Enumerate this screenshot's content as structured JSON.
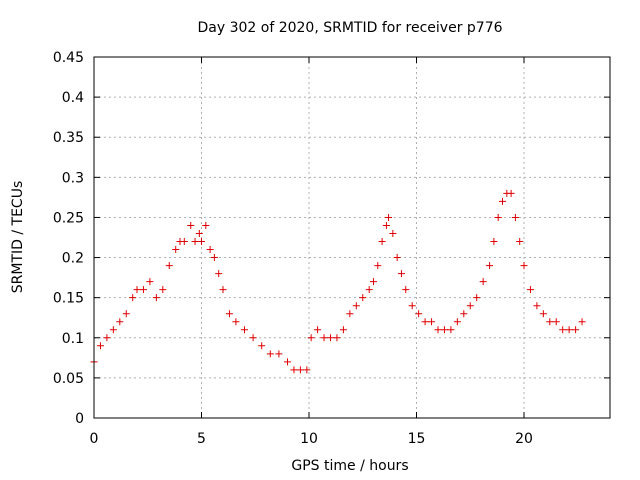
{
  "chart_data": {
    "type": "scatter",
    "title": "Day 302 of 2020, SRMTID for receiver p776",
    "xlabel": "GPS time / hours",
    "ylabel": "SRMTID / TECUs",
    "xlim": [
      0,
      24
    ],
    "ylim": [
      0,
      0.45
    ],
    "xticks": [
      0,
      5,
      10,
      15,
      20
    ],
    "xtick_labels": [
      "0",
      "5",
      "10",
      "15",
      "20"
    ],
    "yticks": [
      0,
      0.05,
      0.1,
      0.15,
      0.2,
      0.25,
      0.3,
      0.35,
      0.4,
      0.45
    ],
    "ytick_labels": [
      "0",
      "0.05",
      "0.1",
      "0.15",
      "0.2",
      "0.25",
      "0.3",
      "0.35",
      "0.4",
      "0.45"
    ],
    "grid": true,
    "marker": "+",
    "color": "#e00000",
    "series": [
      {
        "name": "SRMTID",
        "x": [
          0.0,
          0.3,
          0.6,
          0.9,
          1.2,
          1.5,
          1.8,
          2.0,
          2.3,
          2.6,
          2.9,
          3.2,
          3.5,
          3.8,
          4.0,
          4.2,
          4.5,
          4.7,
          4.9,
          5.0,
          5.2,
          5.4,
          5.6,
          5.8,
          6.0,
          6.3,
          6.6,
          7.0,
          7.4,
          7.8,
          8.2,
          8.6,
          9.0,
          9.3,
          9.6,
          9.9,
          10.1,
          10.4,
          10.7,
          11.0,
          11.3,
          11.6,
          11.9,
          12.2,
          12.5,
          12.8,
          13.0,
          13.2,
          13.4,
          13.6,
          13.7,
          13.9,
          14.1,
          14.3,
          14.5,
          14.8,
          15.1,
          15.4,
          15.7,
          16.0,
          16.3,
          16.6,
          16.9,
          17.2,
          17.5,
          17.8,
          18.1,
          18.4,
          18.6,
          18.8,
          19.0,
          19.2,
          19.4,
          19.6,
          19.8,
          20.0,
          20.3,
          20.6,
          20.9,
          21.2,
          21.5,
          21.8,
          22.1,
          22.4,
          22.7
        ],
        "y": [
          0.07,
          0.09,
          0.1,
          0.11,
          0.12,
          0.13,
          0.15,
          0.16,
          0.16,
          0.17,
          0.15,
          0.16,
          0.19,
          0.21,
          0.22,
          0.22,
          0.24,
          0.22,
          0.23,
          0.22,
          0.24,
          0.21,
          0.2,
          0.18,
          0.16,
          0.13,
          0.12,
          0.11,
          0.1,
          0.09,
          0.08,
          0.08,
          0.07,
          0.06,
          0.06,
          0.06,
          0.1,
          0.11,
          0.1,
          0.1,
          0.1,
          0.11,
          0.13,
          0.14,
          0.15,
          0.16,
          0.17,
          0.19,
          0.22,
          0.24,
          0.25,
          0.23,
          0.2,
          0.18,
          0.16,
          0.14,
          0.13,
          0.12,
          0.12,
          0.11,
          0.11,
          0.11,
          0.12,
          0.13,
          0.14,
          0.15,
          0.17,
          0.19,
          0.22,
          0.25,
          0.27,
          0.28,
          0.28,
          0.25,
          0.22,
          0.19,
          0.16,
          0.14,
          0.13,
          0.12,
          0.12,
          0.11,
          0.11,
          0.11,
          0.12
        ]
      }
    ]
  }
}
